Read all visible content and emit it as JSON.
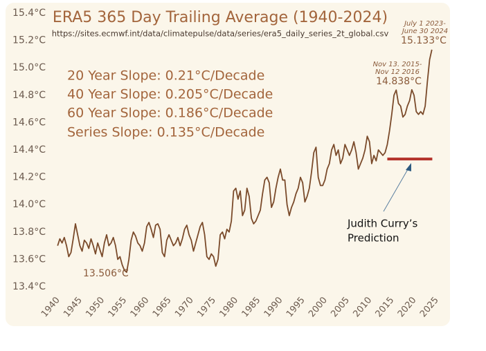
{
  "chart_data": {
    "type": "line",
    "title": "ERA5 365 Day Trailing Average (1940-2024)",
    "subtitle": "https://sites.ecmwf.int/data/climatepulse/data/series/era5_daily_series_2t_global.csv",
    "slopes": [
      "20 Year Slope: 0.21°C/Decade",
      "40 Year Slope: 0.205°C/Decade",
      "60 Year Slope: 0.186°C/Decade",
      "Series  Slope: 0.135°C/Decade"
    ],
    "annotations": {
      "min_label": "13.506°C",
      "peak2016_dates": [
        "Nov 13. 2015-",
        "Nov 12 2016"
      ],
      "peak2016_label": "14.838°C",
      "peak2024_dates": [
        "July 1 2023-",
        "June 30 2024"
      ],
      "peak2024_label": "15.133°C",
      "prediction_text": [
        "Judith Curry’s",
        "Prediction"
      ]
    },
    "prediction": {
      "x": [
        2014.5,
        2024.6
      ],
      "value": 14.334,
      "color": "#b3322a"
    },
    "color": "#7a4a2a",
    "grid": false,
    "xlim": [
      1940,
      2025
    ],
    "xticks": [
      1940,
      1945,
      1950,
      1955,
      1960,
      1965,
      1970,
      1975,
      1980,
      1985,
      1990,
      1995,
      2000,
      2005,
      2010,
      2015,
      2020,
      2025
    ],
    "ylim": [
      13.4,
      15.4
    ],
    "yticks": [
      {
        "value": 13.4,
        "label": "13.4°C"
      },
      {
        "value": 13.6,
        "label": "13.6°C"
      },
      {
        "value": 13.8,
        "label": "13.8°C"
      },
      {
        "value": 14.0,
        "label": "14.0°C"
      },
      {
        "value": 14.2,
        "label": "14.2°C"
      },
      {
        "value": 14.4,
        "label": "14.4°C"
      },
      {
        "value": 14.6,
        "label": "14.6°C"
      },
      {
        "value": 14.8,
        "label": "14.8°C"
      },
      {
        "value": 15.0,
        "label": "15.0°C"
      },
      {
        "value": 15.2,
        "label": "15.2°C"
      },
      {
        "value": 15.4,
        "label": "15.4°C"
      }
    ],
    "x": [
      1940.5,
      1941,
      1941.5,
      1942,
      1942.5,
      1943,
      1943.5,
      1944,
      1944.5,
      1945,
      1945.5,
      1946,
      1946.5,
      1947,
      1947.5,
      1948,
      1948.5,
      1949,
      1949.5,
      1950,
      1950.5,
      1951,
      1951.5,
      1952,
      1952.5,
      1953,
      1953.5,
      1954,
      1954.5,
      1955,
      1955.5,
      1956,
      1956.5,
      1957,
      1957.5,
      1958,
      1958.5,
      1959,
      1959.5,
      1960,
      1960.5,
      1961,
      1961.5,
      1962,
      1962.5,
      1963,
      1963.5,
      1964,
      1964.5,
      1965,
      1965.5,
      1966,
      1966.5,
      1967,
      1967.5,
      1968,
      1968.5,
      1969,
      1969.5,
      1970,
      1970.5,
      1971,
      1971.5,
      1972,
      1972.5,
      1973,
      1973.5,
      1974,
      1974.5,
      1975,
      1975.5,
      1976,
      1976.5,
      1977,
      1977.5,
      1978,
      1978.5,
      1979,
      1979.5,
      1980,
      1980.5,
      1981,
      1981.5,
      1982,
      1982.5,
      1983,
      1983.5,
      1984,
      1984.5,
      1985,
      1985.5,
      1986,
      1986.5,
      1987,
      1987.5,
      1988,
      1988.5,
      1989,
      1989.5,
      1990,
      1990.5,
      1991,
      1991.5,
      1992,
      1992.5,
      1993,
      1993.5,
      1994,
      1994.5,
      1995,
      1995.5,
      1996,
      1996.5,
      1997,
      1997.5,
      1998,
      1998.5,
      1999,
      1999.5,
      2000,
      2000.5,
      2001,
      2001.5,
      2002,
      2002.5,
      2003,
      2003.5,
      2004,
      2004.5,
      2005,
      2005.5,
      2006,
      2006.5,
      2007,
      2007.5,
      2008,
      2008.5,
      2009,
      2009.5,
      2010,
      2010.5,
      2011,
      2011.5,
      2012,
      2012.5,
      2013,
      2013.5,
      2014,
      2014.5,
      2015,
      2015.5,
      2016,
      2016.5,
      2017,
      2017.5,
      2018,
      2018.5,
      2019,
      2019.5,
      2020,
      2020.5,
      2021,
      2021.5,
      2022,
      2022.5,
      2023,
      2023.5,
      2024,
      2024.5
    ],
    "values": [
      13.7,
      13.75,
      13.72,
      13.76,
      13.7,
      13.62,
      13.65,
      13.75,
      13.86,
      13.78,
      13.7,
      13.66,
      13.74,
      13.72,
      13.68,
      13.75,
      13.7,
      13.64,
      13.72,
      13.67,
      13.62,
      13.72,
      13.78,
      13.7,
      13.72,
      13.76,
      13.7,
      13.6,
      13.62,
      13.56,
      13.52,
      13.506,
      13.6,
      13.74,
      13.8,
      13.77,
      13.72,
      13.7,
      13.66,
      13.72,
      13.84,
      13.87,
      13.82,
      13.76,
      13.85,
      13.86,
      13.82,
      13.65,
      13.62,
      13.74,
      13.78,
      13.74,
      13.7,
      13.72,
      13.76,
      13.7,
      13.75,
      13.82,
      13.85,
      13.78,
      13.74,
      13.66,
      13.72,
      13.78,
      13.84,
      13.87,
      13.78,
      13.62,
      13.6,
      13.64,
      13.62,
      13.55,
      13.6,
      13.78,
      13.8,
      13.75,
      13.82,
      13.8,
      13.88,
      14.1,
      14.12,
      14.04,
      14.1,
      13.92,
      13.96,
      14.12,
      14.06,
      13.9,
      13.86,
      13.88,
      13.92,
      13.96,
      14.08,
      14.18,
      14.2,
      14.16,
      13.98,
      14.02,
      14.12,
      14.2,
      14.26,
      14.18,
      14.18,
      14.0,
      13.92,
      13.98,
      14.02,
      14.08,
      14.12,
      14.2,
      14.16,
      14.02,
      14.06,
      14.12,
      14.24,
      14.38,
      14.42,
      14.2,
      14.14,
      14.14,
      14.18,
      14.26,
      14.3,
      14.4,
      14.44,
      14.36,
      14.4,
      14.3,
      14.34,
      14.44,
      14.4,
      14.36,
      14.4,
      14.46,
      14.38,
      14.26,
      14.3,
      14.34,
      14.4,
      14.5,
      14.46,
      14.3,
      14.36,
      14.32,
      14.4,
      14.38,
      14.36,
      14.38,
      14.44,
      14.54,
      14.66,
      14.8,
      14.838,
      14.74,
      14.72,
      14.64,
      14.66,
      14.72,
      14.76,
      14.84,
      14.8,
      14.68,
      14.66,
      14.68,
      14.66,
      14.72,
      14.9,
      15.06,
      15.133
    ]
  }
}
